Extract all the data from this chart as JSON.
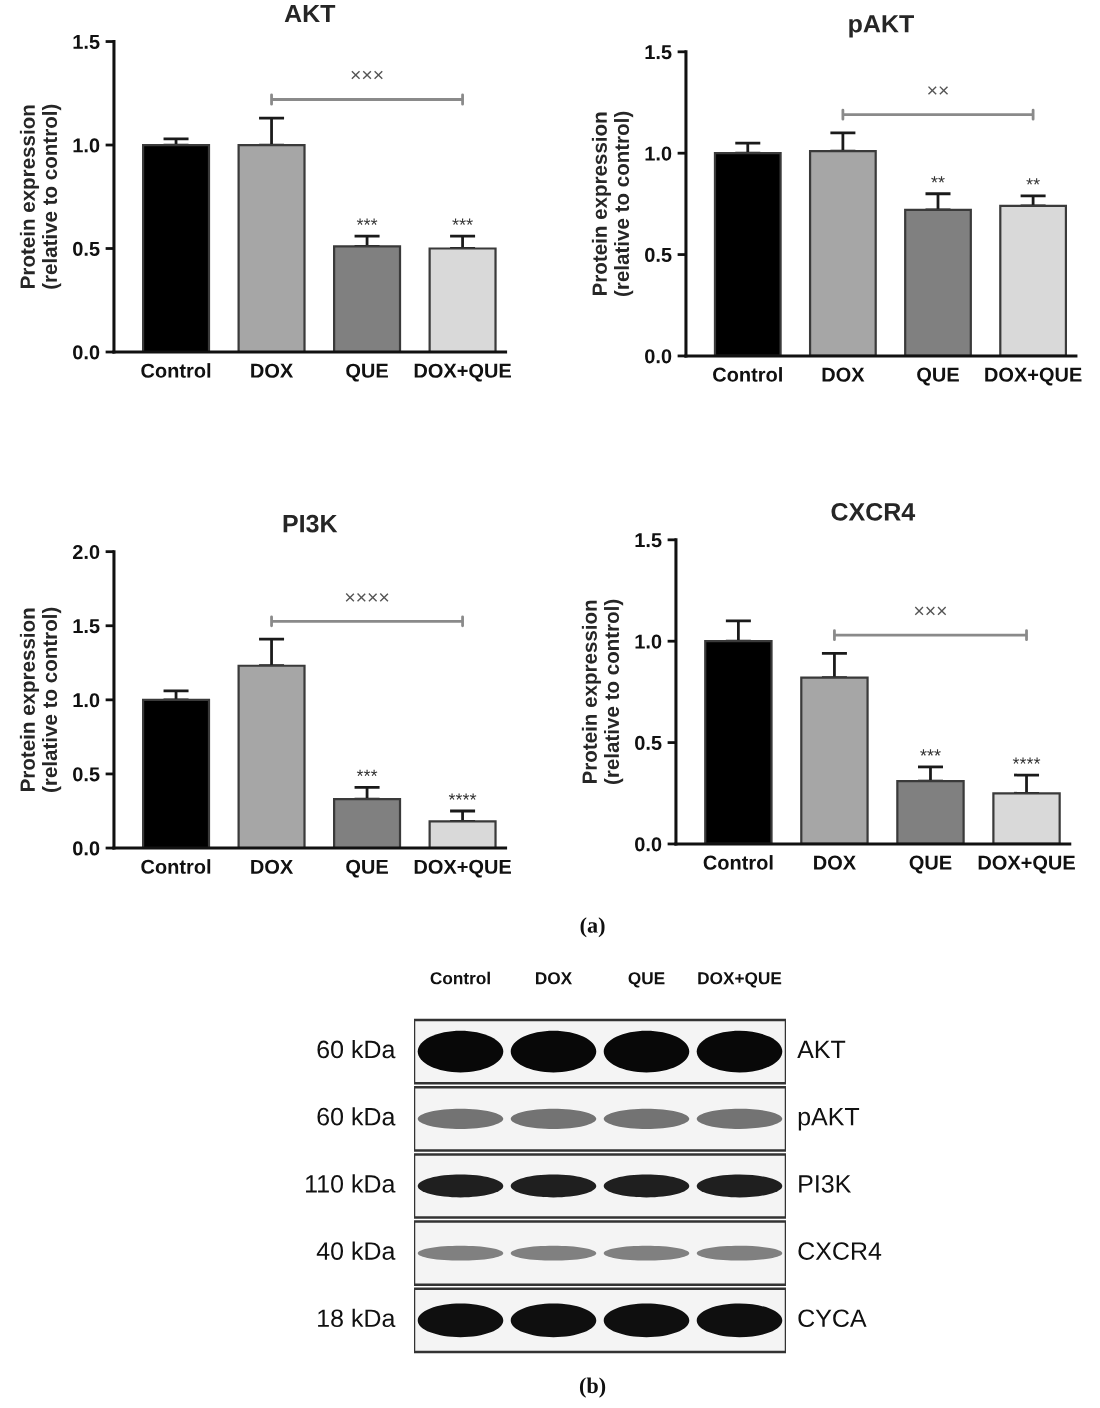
{
  "chart_data": [
    {
      "type": "bar",
      "title": "AKT",
      "ylabel": "Protein expression\n(relative to control)",
      "categories": [
        "Control",
        "DOX",
        "QUE",
        "DOX+QUE"
      ],
      "values": [
        1.0,
        1.0,
        0.51,
        0.5
      ],
      "colors": [
        "#000000",
        "#a6a6a6",
        "#808080",
        "#d9d9d9"
      ],
      "errors": [
        [
          1.0,
          1.03
        ],
        [
          1.0,
          1.13
        ],
        [
          0.51,
          0.56
        ],
        [
          0.5,
          0.56
        ]
      ],
      "ylim": [
        0,
        1.5
      ],
      "yticks": [
        {
          "value": 0,
          "label": "0.0"
        },
        {
          "value": 0.5,
          "label": "0.5"
        },
        {
          "value": 1,
          "label": "1.0"
        },
        {
          "value": 1.5,
          "label": "1.5"
        }
      ],
      "annotations": [
        "×××",
        {
          "text": "***",
          "x": "QUE",
          "y": 0.56
        },
        {
          "text": "***",
          "x": "DOX+QUE",
          "y": 0.56
        }
      ]
    },
    {
      "type": "bar",
      "title": "pAKT",
      "ylabel": "Protein expression\n(relative to control)",
      "categories": [
        "Control",
        "DOX",
        "QUE",
        "DOX+QUE"
      ],
      "values": [
        1.0,
        1.01,
        0.72,
        0.74
      ],
      "colors": [
        "#000000",
        "#a6a6a6",
        "#808080",
        "#d9d9d9"
      ],
      "errors": [
        [
          1.0,
          1.05
        ],
        [
          1.01,
          1.1
        ],
        [
          0.72,
          0.8
        ],
        [
          0.74,
          0.79
        ]
      ],
      "ylim": [
        0,
        1.5
      ],
      "yticks": [
        {
          "value": 0,
          "label": "0.0"
        },
        {
          "value": 0.5,
          "label": "0.5"
        },
        {
          "value": 1,
          "label": "1.0"
        },
        {
          "value": 1.5,
          "label": "1.5"
        }
      ],
      "annotations": [
        "××",
        {
          "text": "**",
          "x": "QUE",
          "y": 0.8
        },
        {
          "text": "**",
          "x": "DOX+QUE",
          "y": 0.79
        }
      ]
    },
    {
      "type": "bar",
      "title": "PI3K",
      "ylabel": "Protein expression\n(relative to control)",
      "categories": [
        "Control",
        "DOX",
        "QUE",
        "DOX+QUE"
      ],
      "values": [
        1.0,
        1.23,
        0.33,
        0.18
      ],
      "colors": [
        "#000000",
        "#a6a6a6",
        "#808080",
        "#d9d9d9"
      ],
      "errors": [
        [
          1.0,
          1.06
        ],
        [
          1.23,
          1.41
        ],
        [
          0.33,
          0.41
        ],
        [
          0.18,
          0.25
        ]
      ],
      "ylim": [
        0,
        2
      ],
      "yticks": [
        {
          "value": 0,
          "label": "0.0"
        },
        {
          "value": 0.5,
          "label": "0.5"
        },
        {
          "value": 1,
          "label": "1.0"
        },
        {
          "value": 1.5,
          "label": "1.5"
        },
        {
          "value": 2,
          "label": "2.0"
        }
      ],
      "annotations": [
        "××××",
        {
          "text": "***",
          "x": "QUE",
          "y": 0.41
        },
        {
          "text": "****",
          "x": "DOX+QUE",
          "y": 0.25
        }
      ]
    },
    {
      "type": "bar",
      "title": "CXCR4",
      "ylabel": "Protein expression\n(relative to control)",
      "categories": [
        "Control",
        "DOX",
        "QUE",
        "DOX+QUE"
      ],
      "values": [
        1.0,
        0.82,
        0.31,
        0.25
      ],
      "colors": [
        "#000000",
        "#a6a6a6",
        "#808080",
        "#d9d9d9"
      ],
      "errors": [
        [
          1.0,
          1.1
        ],
        [
          0.82,
          0.94
        ],
        [
          0.31,
          0.38
        ],
        [
          0.25,
          0.34
        ]
      ],
      "ylim": [
        0,
        1.5
      ],
      "yticks": [
        {
          "value": 0,
          "label": "0.0"
        },
        {
          "value": 0.5,
          "label": "0.5"
        },
        {
          "value": 1,
          "label": "1.0"
        },
        {
          "value": 1.5,
          "label": "1.5"
        }
      ],
      "annotations": [
        "×××",
        {
          "text": "***",
          "x": "QUE",
          "y": 0.38
        },
        {
          "text": "****",
          "x": "DOX+QUE",
          "y": 0.34
        }
      ]
    },
    {
      "type": "other",
      "categories": [
        "Control",
        "DOX",
        "QUE",
        "DOX+QUE"
      ],
      "y_categories": [
        "60 kDa",
        "60 kDa",
        "110 kDa",
        "40 kDa",
        "18 kDa"
      ],
      "y2_categories": [
        "AKT",
        "pAKT",
        "PI3K",
        "CXCR4",
        "CYCA"
      ],
      "annotations": [
        "(a)",
        "(b)"
      ]
    }
  ]
}
